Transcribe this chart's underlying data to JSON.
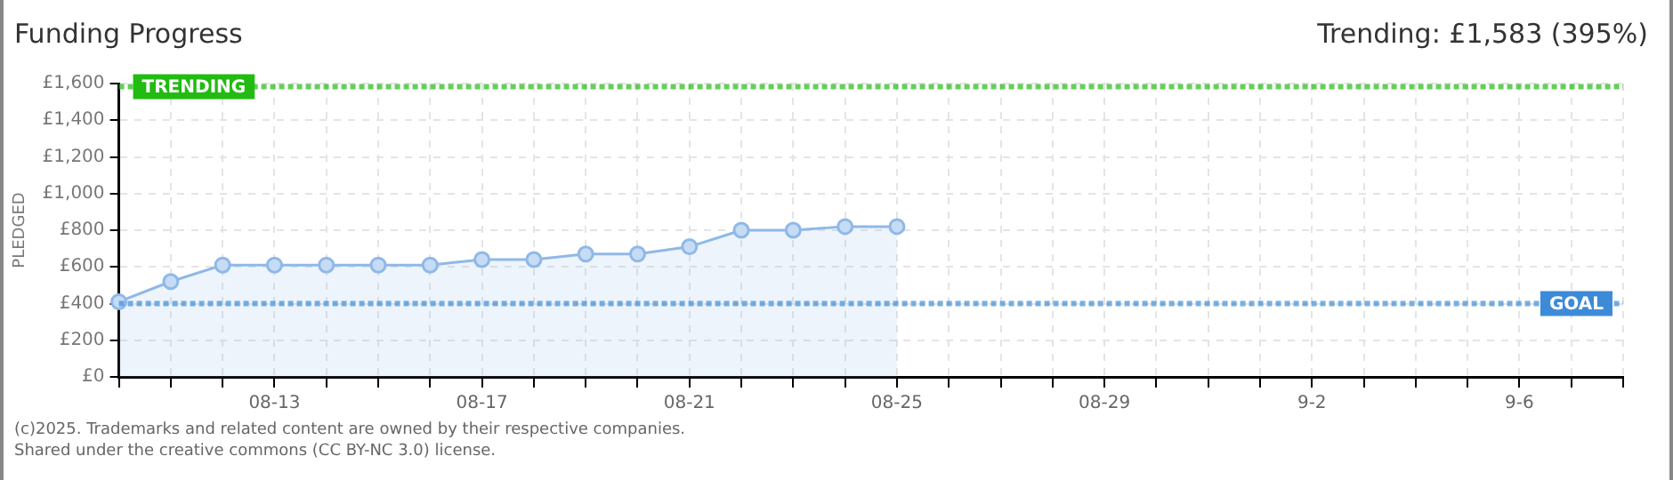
{
  "chart_data": {
    "type": "area",
    "title": "Funding Progress",
    "ylabel": "PLEDGED",
    "annotations": [
      "Trending: £1,583 (395%)",
      "(c)2025. Trademarks and related content are owned by their respective companies.",
      "Shared under the creative commons (CC BY-NC 3.0) license."
    ],
    "categories": [
      null,
      null,
      null,
      "08-13",
      null,
      null,
      null,
      "08-17",
      null,
      null,
      null,
      "08-21",
      null,
      null,
      null,
      "08-25",
      null,
      null,
      null,
      "08-29",
      null,
      null,
      null,
      "9-2",
      null,
      null,
      null,
      "9-6",
      null,
      null
    ],
    "series": [
      {
        "color": "#8fb8e8",
        "values": [
          410,
          520,
          610,
          610,
          610,
          610,
          610,
          640,
          640,
          670,
          670,
          710,
          800,
          800,
          820,
          820,
          null,
          null,
          null,
          null,
          null,
          null,
          null,
          null,
          null,
          null,
          null,
          null,
          null,
          null
        ]
      }
    ],
    "ylim": [
      0,
      1600
    ],
    "yticks": [
      {
        "value": 0,
        "label": "£0"
      },
      {
        "value": 200,
        "label": "£200"
      },
      {
        "value": 400,
        "label": "£400"
      },
      {
        "value": 600,
        "label": "£600"
      },
      {
        "value": 800,
        "label": "£800"
      },
      {
        "value": 1000,
        "label": "£1,000"
      },
      {
        "value": 1200,
        "label": "£1,200"
      },
      {
        "value": 1400,
        "label": "£1,400"
      },
      {
        "value": 1600,
        "label": "£1,600"
      }
    ],
    "ref_lines": [
      {
        "axis": "y",
        "value": 1583,
        "label": "TRENDING",
        "color": "#22bb11",
        "line_style": "dotted"
      },
      {
        "axis": "y",
        "value": 400,
        "label": "GOAL",
        "color": "#3d8bd8",
        "line_style": "dotted"
      }
    ],
    "grid": true,
    "marker": "circle",
    "legend": false
  }
}
